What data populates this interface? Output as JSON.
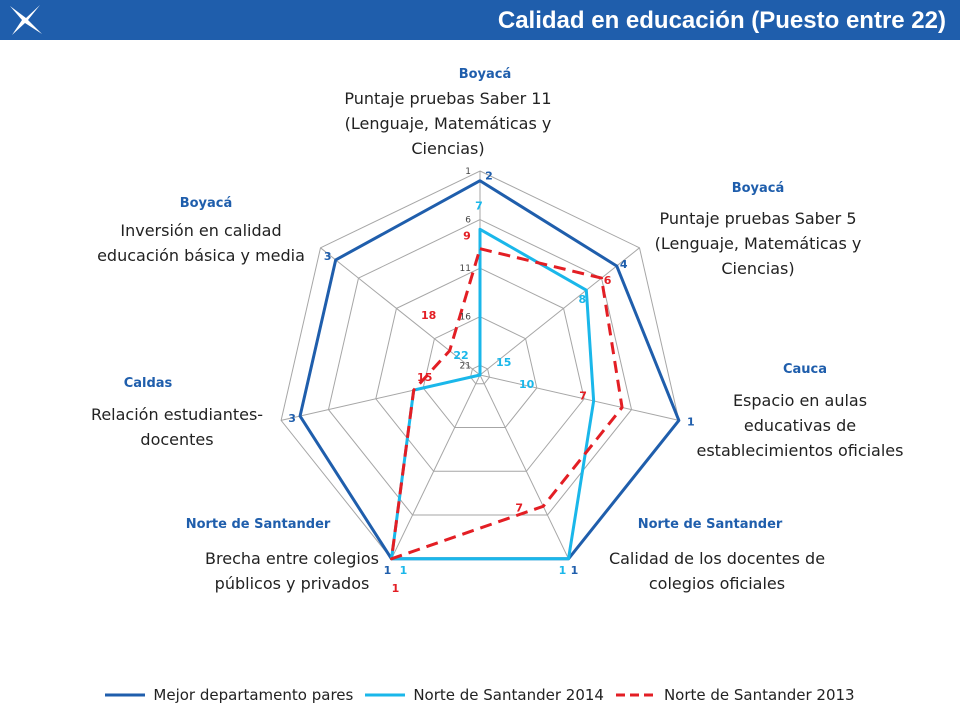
{
  "header": {
    "title": "Calidad en educación (Puesto entre 22)",
    "logo_icon": "star-logo-icon",
    "background": "#1f5eac"
  },
  "chart_data": {
    "type": "radar",
    "title": "Calidad en educación (Puesto entre 22)",
    "axis_ticks": [
      "1",
      "6",
      "11",
      "16",
      "21"
    ],
    "rlim": [
      1,
      22
    ],
    "reversed_scale": true,
    "axes": [
      {
        "department": "Boyacá",
        "metric": [
          "Puntaje pruebas Saber 11",
          "(Lenguaje, Matemáticas y",
          "Ciencias)"
        ]
      },
      {
        "department": "Boyacá",
        "metric": [
          "Puntaje pruebas Saber 5",
          "(Lenguaje, Matemáticas y",
          "Ciencias)"
        ]
      },
      {
        "department": "Cauca",
        "metric": [
          "Espacio en aulas",
          "educativas de",
          "establecimientos oficiales"
        ]
      },
      {
        "department": "Norte de Santander",
        "metric": [
          "Calidad de los docentes de",
          "colegios oficiales"
        ]
      },
      {
        "department": "Norte de Santander",
        "metric": [
          "Brecha entre colegios",
          "públicos y privados"
        ]
      },
      {
        "department": "Caldas",
        "metric": [
          "Relación estudiantes-",
          "docentes"
        ]
      },
      {
        "department": "Boyacá",
        "metric": [
          "Inversión en calidad",
          "educación básica y media"
        ]
      }
    ],
    "series": [
      {
        "name": "Mejor departamento pares",
        "color": "#1f5eac",
        "dash": "solid",
        "values": [
          2,
          4,
          1,
          1,
          1,
          3,
          3
        ]
      },
      {
        "name": "Norte de Santander 2014",
        "color": "#1ab7ea",
        "dash": "solid",
        "values": [
          7,
          8,
          10,
          1,
          1,
          15,
          22
        ]
      },
      {
        "name": "Norte de Santander 2013",
        "color": "#e31e24",
        "dash": "dashed",
        "values": [
          9,
          6,
          7,
          7,
          1,
          15,
          18
        ]
      }
    ],
    "grid": true,
    "legend_position": "bottom"
  }
}
